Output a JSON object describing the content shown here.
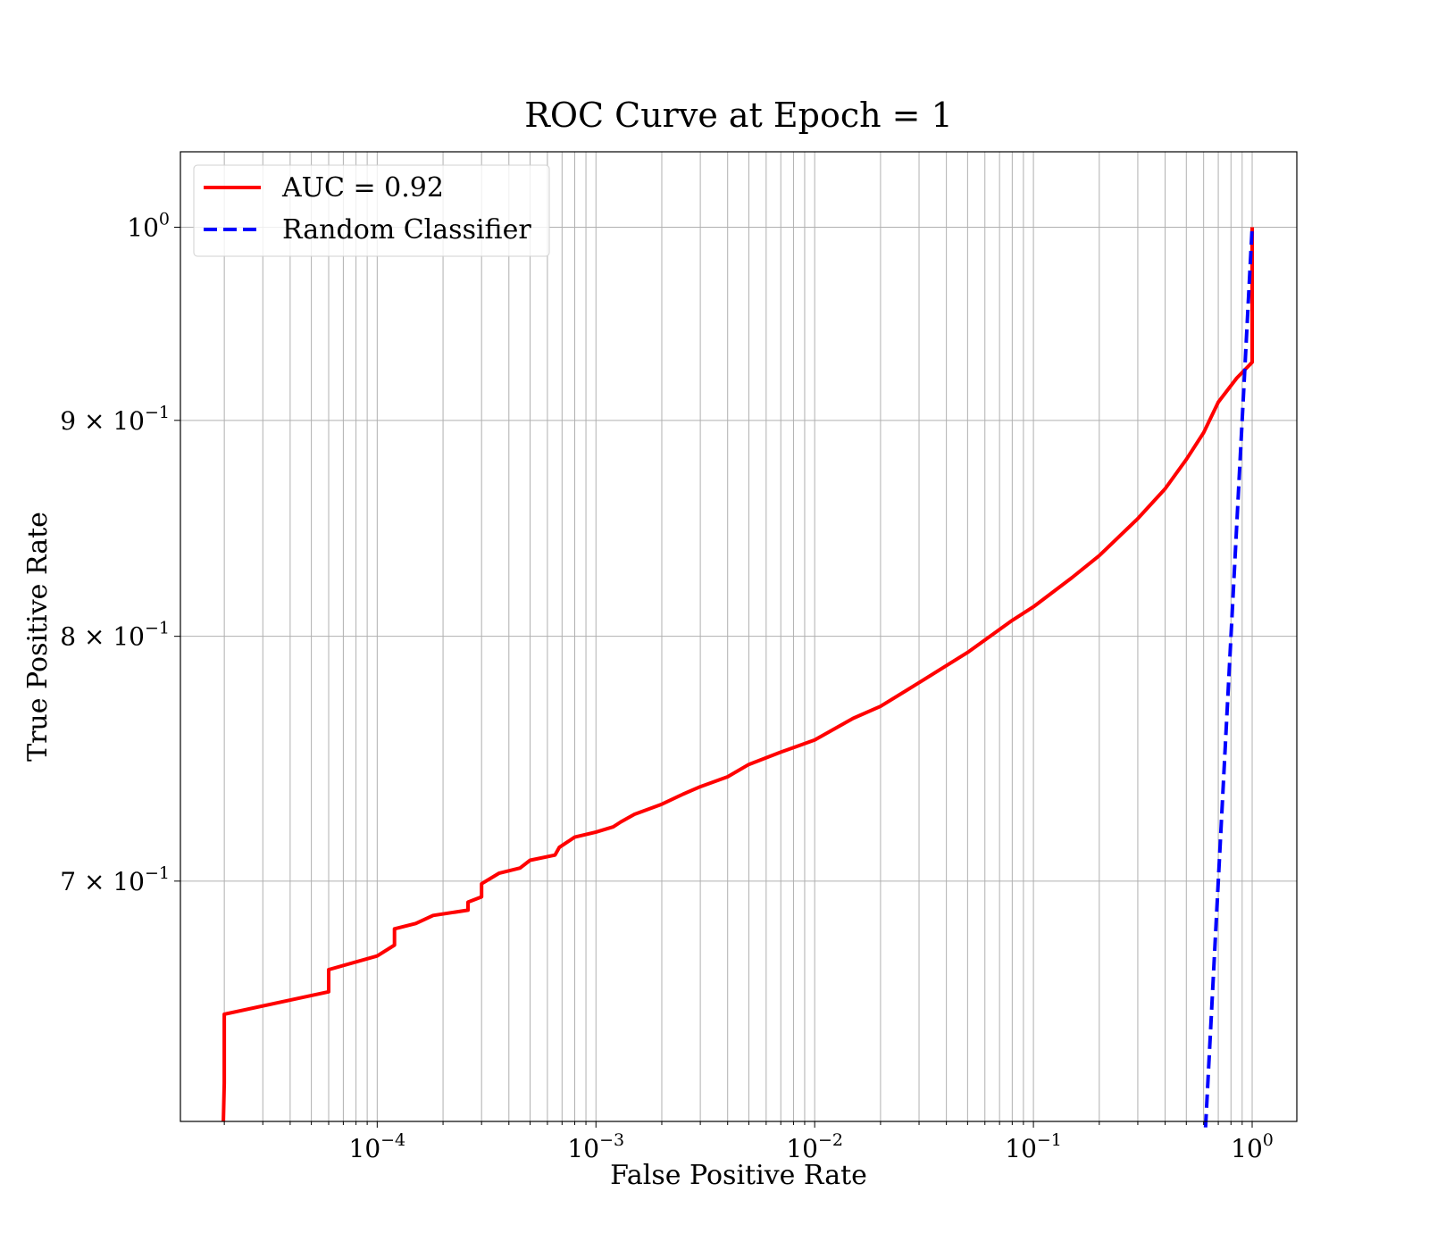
{
  "chart_data": {
    "type": "line",
    "title": "ROC Curve at Epoch = 1",
    "xlabel": "False Positive Rate",
    "ylabel": "True Positive Rate",
    "xscale": "log",
    "yscale": "log",
    "xlim": [
      1.26e-05,
      1.6
    ],
    "ylim": [
      0.614,
      1.042
    ],
    "grid": true,
    "grid_which": "both",
    "legend_position": "upper left",
    "x_ticks": [
      {
        "value": 0.0001,
        "base": "10",
        "exp": "−4"
      },
      {
        "value": 0.001,
        "base": "10",
        "exp": "−3"
      },
      {
        "value": 0.01,
        "base": "10",
        "exp": "−2"
      },
      {
        "value": 0.1,
        "base": "10",
        "exp": "−1"
      },
      {
        "value": 1,
        "base": "10",
        "exp": "0"
      }
    ],
    "y_ticks": [
      {
        "value": 0.7,
        "base": "7 × 10",
        "exp": "−1"
      },
      {
        "value": 0.8,
        "base": "8 × 10",
        "exp": "−1"
      },
      {
        "value": 0.9,
        "base": "9 × 10",
        "exp": "−1"
      },
      {
        "value": 1.0,
        "base": "10",
        "exp": "0"
      }
    ],
    "series": [
      {
        "name": "AUC = 0.92",
        "color": "#ff0000",
        "style": "solid",
        "points": [
          [
            1.98e-05,
            0.614
          ],
          [
            2e-05,
            0.627
          ],
          [
            2e-05,
            0.651
          ],
          [
            6e-05,
            0.659
          ],
          [
            6e-05,
            0.667
          ],
          [
            0.0001,
            0.672
          ],
          [
            0.00012,
            0.676
          ],
          [
            0.00012,
            0.682
          ],
          [
            0.00015,
            0.684
          ],
          [
            0.00018,
            0.687
          ],
          [
            0.00026,
            0.689
          ],
          [
            0.00026,
            0.692
          ],
          [
            0.0003,
            0.694
          ],
          [
            0.0003,
            0.699
          ],
          [
            0.00036,
            0.703
          ],
          [
            0.00045,
            0.705
          ],
          [
            0.0005,
            0.708
          ],
          [
            0.00065,
            0.71
          ],
          [
            0.00068,
            0.713
          ],
          [
            0.0008,
            0.717
          ],
          [
            0.001,
            0.719
          ],
          [
            0.0012,
            0.721
          ],
          [
            0.0013,
            0.723
          ],
          [
            0.0015,
            0.726
          ],
          [
            0.002,
            0.73
          ],
          [
            0.0025,
            0.734
          ],
          [
            0.003,
            0.737
          ],
          [
            0.004,
            0.741
          ],
          [
            0.005,
            0.746
          ],
          [
            0.007,
            0.751
          ],
          [
            0.01,
            0.756
          ],
          [
            0.015,
            0.765
          ],
          [
            0.02,
            0.77
          ],
          [
            0.03,
            0.78
          ],
          [
            0.05,
            0.793
          ],
          [
            0.08,
            0.807
          ],
          [
            0.1,
            0.813
          ],
          [
            0.15,
            0.826
          ],
          [
            0.2,
            0.836
          ],
          [
            0.3,
            0.853
          ],
          [
            0.4,
            0.867
          ],
          [
            0.5,
            0.881
          ],
          [
            0.6,
            0.894
          ],
          [
            0.7,
            0.909
          ],
          [
            0.85,
            0.921
          ],
          [
            1.0,
            0.929
          ],
          [
            1.0,
            1.0
          ]
        ]
      },
      {
        "name": "Random Classifier",
        "color": "#0000ff",
        "style": "dashed",
        "points": [
          [
            0.612,
            0.612
          ],
          [
            1.0,
            1.0
          ]
        ]
      }
    ]
  }
}
